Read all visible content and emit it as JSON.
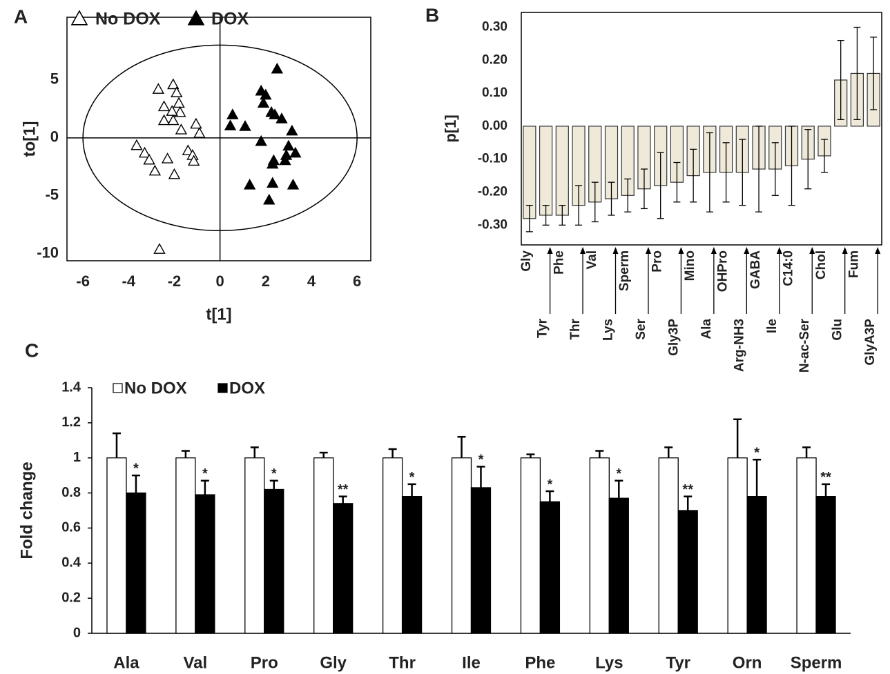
{
  "chart_data": [
    {
      "type": "scatter",
      "panel_label": "A",
      "x_label": "t[1]",
      "y_label": "to[1]",
      "xlim": [
        -6.7,
        6.6
      ],
      "ylim": [
        -10.6,
        10.4
      ],
      "xticks": [
        -6,
        -4,
        -2,
        0,
        2,
        4,
        6
      ],
      "yticks": [
        -10,
        -5,
        0,
        5
      ],
      "ellipse_radii": [
        6.0,
        8.0
      ],
      "series": [
        {
          "name": "No DOX",
          "color": "#000000",
          "filled": false,
          "x": [
            -2.05,
            -2.7,
            -1.9,
            -1.8,
            -2.45,
            -1.75,
            -2.1,
            -2.45,
            -2.05,
            -1.05,
            -1.7,
            -0.9,
            -3.65,
            -3.3,
            -1.4,
            -3.1,
            -2.3,
            -1.2,
            -1.15,
            -2.85,
            -2.0,
            -2.65
          ],
          "y": [
            4.6,
            4.2,
            3.9,
            3.0,
            2.7,
            2.2,
            2.3,
            1.5,
            1.5,
            1.2,
            0.7,
            0.4,
            -0.65,
            -1.3,
            -1.1,
            -1.9,
            -1.8,
            -1.5,
            -2.0,
            -2.85,
            -3.15,
            -9.6
          ]
        },
        {
          "name": "DOX",
          "color": "#000000",
          "filled": true,
          "x": [
            2.5,
            1.8,
            2.0,
            1.9,
            2.25,
            2.4,
            2.7,
            0.55,
            0.45,
            1.1,
            3.15,
            1.8,
            3.0,
            3.3,
            2.9,
            2.35,
            2.85,
            2.3,
            1.3,
            2.3,
            3.2,
            2.15
          ],
          "y": [
            5.95,
            4.05,
            3.7,
            3.0,
            2.2,
            2.0,
            1.65,
            2.0,
            1.05,
            1.0,
            0.6,
            -0.3,
            -0.7,
            -1.3,
            -1.5,
            -1.95,
            -1.95,
            -2.25,
            -4.05,
            -3.9,
            -4.05,
            -5.35
          ]
        }
      ]
    },
    {
      "type": "bar",
      "panel_label": "B",
      "y_label": "p[1]",
      "categories": [
        "Gly",
        "Tyr",
        "Phe",
        "Thr",
        "Val",
        "Lys",
        "Sperm",
        "Ser",
        "Pro",
        "Gly3P",
        "Mino",
        "Ala",
        "OHPro",
        "Arg-NH3",
        "GABA",
        "Ile",
        "C14:0",
        "N-ac-Ser",
        "Chol",
        "Glu",
        "Fum",
        "GlyA3P"
      ],
      "values": [
        -0.28,
        -0.27,
        -0.27,
        -0.24,
        -0.23,
        -0.22,
        -0.21,
        -0.19,
        -0.18,
        -0.17,
        -0.15,
        -0.14,
        -0.14,
        -0.14,
        -0.13,
        -0.13,
        -0.12,
        -0.1,
        -0.09,
        0.14,
        0.16,
        0.16
      ],
      "errors": [
        0.04,
        0.03,
        0.03,
        0.06,
        0.06,
        0.05,
        0.05,
        0.06,
        0.1,
        0.06,
        0.08,
        0.12,
        0.09,
        0.1,
        0.13,
        0.08,
        0.12,
        0.09,
        0.05,
        0.12,
        0.14,
        0.11
      ],
      "color": "#efe9d9",
      "ylim": [
        -0.36,
        0.345
      ],
      "yticks": [
        {
          "value": -0.3,
          "label": "-0.30"
        },
        {
          "value": -0.2,
          "label": "-0.20"
        },
        {
          "value": -0.1,
          "label": "-0.10"
        },
        {
          "value": 0,
          "label": "0.00"
        },
        {
          "value": 0.1,
          "label": "0.10"
        },
        {
          "value": 0.2,
          "label": "0.20"
        },
        {
          "value": 0.3,
          "label": "0.30"
        }
      ]
    },
    {
      "type": "grouped_bar",
      "panel_label": "C",
      "y_label": "Fold change",
      "categories": [
        "Ala",
        "Val",
        "Pro",
        "Gly",
        "Thr",
        "Ile",
        "Phe",
        "Lys",
        "Tyr",
        "Orn",
        "Sperm"
      ],
      "ylim": [
        0,
        1.4
      ],
      "yticks": [
        0,
        0.2,
        0.4,
        0.6,
        0.8,
        1,
        1.2,
        1.4
      ],
      "series": [
        {
          "name": "No DOX",
          "color": "#ffffff",
          "values": [
            1,
            1,
            1,
            1,
            1,
            1,
            1,
            1,
            1,
            1,
            1
          ],
          "errors": [
            0.14,
            0.04,
            0.06,
            0.03,
            0.05,
            0.12,
            0.02,
            0.04,
            0.06,
            0.22,
            0.06
          ]
        },
        {
          "name": "DOX",
          "color": "#000000",
          "values": [
            0.8,
            0.79,
            0.82,
            0.74,
            0.78,
            0.83,
            0.75,
            0.77,
            0.7,
            0.78,
            0.78
          ],
          "errors": [
            0.1,
            0.08,
            0.05,
            0.04,
            0.07,
            0.12,
            0.06,
            0.1,
            0.08,
            0.21,
            0.07
          ],
          "significance": [
            "*",
            "*",
            "*",
            "**",
            "*",
            "*",
            "*",
            "*",
            "**",
            "*",
            "**"
          ]
        }
      ]
    }
  ]
}
